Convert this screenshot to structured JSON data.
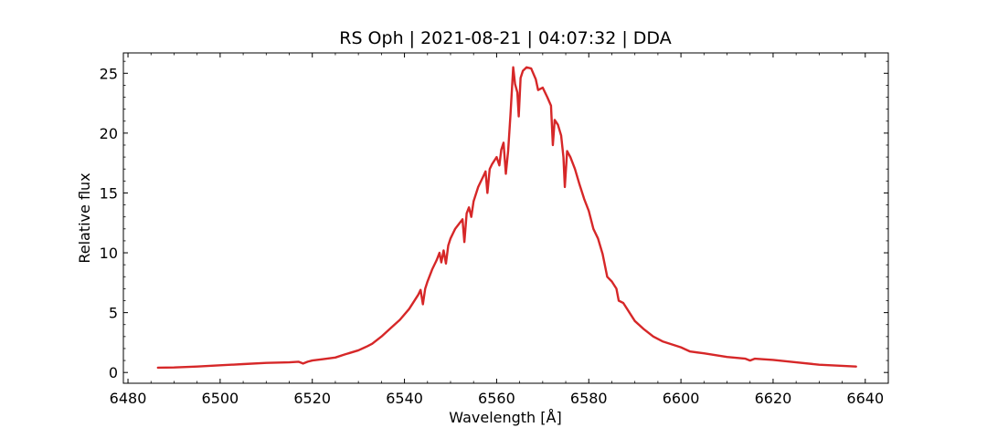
{
  "chart_data": {
    "type": "line",
    "title": "RS Oph | 2021-08-21 | 04:07:32 | DDA",
    "xlabel": "Wavelength [Å]",
    "ylabel": "Relative flux",
    "xlim": [
      6479,
      6645
    ],
    "ylim": [
      -0.9,
      26.7
    ],
    "xticks": [
      6480,
      6500,
      6520,
      6540,
      6560,
      6580,
      6600,
      6620,
      6640
    ],
    "yticks": [
      0,
      5,
      10,
      15,
      20,
      25
    ],
    "x_minor_step": 5,
    "y_minor_step": 1,
    "grid": false,
    "series": [
      {
        "color": "#d62728",
        "points": [
          [
            6486.5,
            0.4
          ],
          [
            6490,
            0.42
          ],
          [
            6495,
            0.5
          ],
          [
            6500,
            0.6
          ],
          [
            6505,
            0.7
          ],
          [
            6510,
            0.8
          ],
          [
            6515,
            0.85
          ],
          [
            6517,
            0.9
          ],
          [
            6518,
            0.75
          ],
          [
            6519,
            0.9
          ],
          [
            6520,
            1.0
          ],
          [
            6522,
            1.1
          ],
          [
            6525,
            1.25
          ],
          [
            6527,
            1.5
          ],
          [
            6530,
            1.85
          ],
          [
            6532,
            2.2
          ],
          [
            6533,
            2.4
          ],
          [
            6535,
            3.0
          ],
          [
            6537,
            3.7
          ],
          [
            6539,
            4.4
          ],
          [
            6541,
            5.3
          ],
          [
            6542,
            5.9
          ],
          [
            6543,
            6.5
          ],
          [
            6543.5,
            6.9
          ],
          [
            6544,
            5.7
          ],
          [
            6544.5,
            7.0
          ],
          [
            6545,
            7.6
          ],
          [
            6546,
            8.6
          ],
          [
            6547,
            9.4
          ],
          [
            6547.6,
            10.0
          ],
          [
            6548,
            9.2
          ],
          [
            6548.5,
            10.2
          ],
          [
            6549,
            9.1
          ],
          [
            6549.5,
            10.6
          ],
          [
            6550,
            11.2
          ],
          [
            6551,
            12.0
          ],
          [
            6552,
            12.5
          ],
          [
            6552.6,
            12.8
          ],
          [
            6553,
            10.9
          ],
          [
            6553.5,
            13.3
          ],
          [
            6554,
            13.8
          ],
          [
            6554.5,
            13.0
          ],
          [
            6555,
            14.3
          ],
          [
            6556,
            15.5
          ],
          [
            6557,
            16.3
          ],
          [
            6557.6,
            16.8
          ],
          [
            6558,
            15.0
          ],
          [
            6558.5,
            17.0
          ],
          [
            6559,
            17.4
          ],
          [
            6560,
            18.0
          ],
          [
            6560.6,
            17.3
          ],
          [
            6561,
            18.6
          ],
          [
            6561.5,
            19.2
          ],
          [
            6562,
            16.6
          ],
          [
            6562.5,
            18.5
          ],
          [
            6563,
            21.5
          ],
          [
            6563.6,
            25.5
          ],
          [
            6564,
            24.1
          ],
          [
            6564.5,
            23.4
          ],
          [
            6564.8,
            21.4
          ],
          [
            6565.2,
            24.6
          ],
          [
            6565.7,
            25.2
          ],
          [
            6566.5,
            25.5
          ],
          [
            6567.5,
            25.4
          ],
          [
            6568.5,
            24.5
          ],
          [
            6569,
            23.6
          ],
          [
            6570,
            23.8
          ],
          [
            6571,
            23.0
          ],
          [
            6571.8,
            22.3
          ],
          [
            6572.2,
            19.0
          ],
          [
            6572.6,
            21.1
          ],
          [
            6573.3,
            20.7
          ],
          [
            6574,
            19.8
          ],
          [
            6574.5,
            18.0
          ],
          [
            6574.8,
            15.5
          ],
          [
            6575.3,
            18.5
          ],
          [
            6576,
            18.0
          ],
          [
            6577,
            17.0
          ],
          [
            6578,
            15.7
          ],
          [
            6579,
            14.5
          ],
          [
            6580,
            13.5
          ],
          [
            6581,
            12.0
          ],
          [
            6582,
            11.2
          ],
          [
            6583,
            9.9
          ],
          [
            6584,
            8.0
          ],
          [
            6585,
            7.6
          ],
          [
            6586,
            7.0
          ],
          [
            6586.5,
            6.0
          ],
          [
            6587.5,
            5.8
          ],
          [
            6590,
            4.3
          ],
          [
            6592,
            3.6
          ],
          [
            6594,
            3.0
          ],
          [
            6596,
            2.6
          ],
          [
            6600,
            2.1
          ],
          [
            6602,
            1.75
          ],
          [
            6605,
            1.6
          ],
          [
            6610,
            1.3
          ],
          [
            6614,
            1.15
          ],
          [
            6615,
            1.0
          ],
          [
            6616,
            1.15
          ],
          [
            6620,
            1.05
          ],
          [
            6625,
            0.85
          ],
          [
            6630,
            0.65
          ],
          [
            6635,
            0.55
          ],
          [
            6638,
            0.5
          ]
        ]
      }
    ]
  }
}
